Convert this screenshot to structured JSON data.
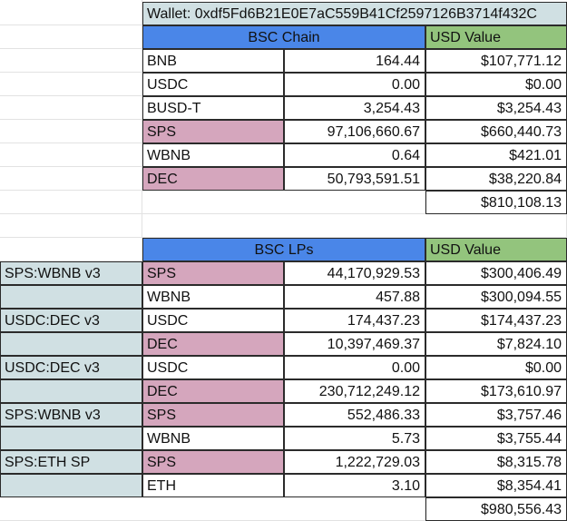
{
  "wallet": {
    "label": "Wallet: 0xdf5Fd6B21E0E7aC559B41Cf2597126B3714f432C"
  },
  "bsc_chain": {
    "header": "BSC Chain",
    "usd_header": "USD Value",
    "rows": [
      {
        "token": "BNB",
        "amount": "164.44",
        "usd": "$107,771.12",
        "highlight": ""
      },
      {
        "token": "USDC",
        "amount": "0.00",
        "usd": "$0.00",
        "highlight": ""
      },
      {
        "token": "BUSD-T",
        "amount": "3,254.43",
        "usd": "$3,254.43",
        "highlight": ""
      },
      {
        "token": "SPS",
        "amount": "97,106,660.67",
        "usd": "$660,440.73",
        "highlight": "pink"
      },
      {
        "token": "WBNB",
        "amount": "0.64",
        "usd": "$421.01",
        "highlight": ""
      },
      {
        "token": "DEC",
        "amount": "50,793,591.51",
        "usd": "$38,220.84",
        "highlight": "pink"
      }
    ],
    "total": "$810,108.13"
  },
  "bsc_lps": {
    "header": "BSC LPs",
    "usd_header": "USD Value",
    "rows": [
      {
        "pair": "SPS:WBNB v3",
        "token": "SPS",
        "amount": "44,170,929.53",
        "usd": "$300,406.49",
        "highlight": "pink"
      },
      {
        "pair": "",
        "token": "WBNB",
        "amount": "457.88",
        "usd": "$300,094.55",
        "highlight": ""
      },
      {
        "pair": "USDC:DEC v3",
        "token": "USDC",
        "amount": "174,437.23",
        "usd": "$174,437.23",
        "highlight": ""
      },
      {
        "pair": "",
        "token": "DEC",
        "amount": "10,397,469.37",
        "usd": "$7,824.10",
        "highlight": "pink"
      },
      {
        "pair": "USDC:DEC v3",
        "token": "USDC",
        "amount": "0.00",
        "usd": "$0.00",
        "highlight": ""
      },
      {
        "pair": "",
        "token": "DEC",
        "amount": "230,712,249.12",
        "usd": "$173,610.97",
        "highlight": "pink"
      },
      {
        "pair": "SPS:WBNB v3",
        "token": "SPS",
        "amount": "552,486.33",
        "usd": "$3,757.46",
        "highlight": "pink"
      },
      {
        "pair": "",
        "token": "WBNB",
        "amount": "5.73",
        "usd": "$3,755.44",
        "highlight": ""
      },
      {
        "pair": "SPS:ETH SP",
        "token": "SPS",
        "amount": "1,222,729.03",
        "usd": "$8,315.78",
        "highlight": "pink"
      },
      {
        "pair": "",
        "token": "ETH",
        "amount": "3.10",
        "usd": "$8,354.41",
        "highlight": ""
      }
    ],
    "total": "$980,556.43"
  },
  "colors": {
    "blue_header": "#4a86e8",
    "green_header": "#93c47d",
    "pink_highlight": "#d5a6bd",
    "teal_pair": "#d0e0e3"
  }
}
